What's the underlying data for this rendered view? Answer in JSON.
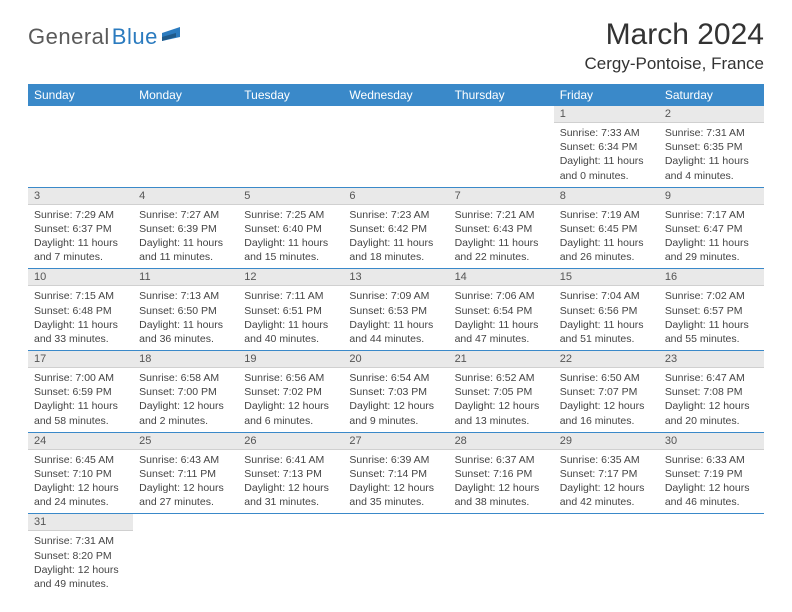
{
  "logo": {
    "gray": "General",
    "blue": "Blue"
  },
  "title": "March 2024",
  "location": "Cergy-Pontoise, France",
  "header_bg": "#3a89c9",
  "daynum_bg": "#e9e9e9",
  "rule_color": "#3a89c9",
  "days_of_week": [
    "Sunday",
    "Monday",
    "Tuesday",
    "Wednesday",
    "Thursday",
    "Friday",
    "Saturday"
  ],
  "weeks": [
    [
      null,
      null,
      null,
      null,
      null,
      {
        "n": "1",
        "l1": "Sunrise: 7:33 AM",
        "l2": "Sunset: 6:34 PM",
        "l3": "Daylight: 11 hours",
        "l4": "and 0 minutes."
      },
      {
        "n": "2",
        "l1": "Sunrise: 7:31 AM",
        "l2": "Sunset: 6:35 PM",
        "l3": "Daylight: 11 hours",
        "l4": "and 4 minutes."
      }
    ],
    [
      {
        "n": "3",
        "l1": "Sunrise: 7:29 AM",
        "l2": "Sunset: 6:37 PM",
        "l3": "Daylight: 11 hours",
        "l4": "and 7 minutes."
      },
      {
        "n": "4",
        "l1": "Sunrise: 7:27 AM",
        "l2": "Sunset: 6:39 PM",
        "l3": "Daylight: 11 hours",
        "l4": "and 11 minutes."
      },
      {
        "n": "5",
        "l1": "Sunrise: 7:25 AM",
        "l2": "Sunset: 6:40 PM",
        "l3": "Daylight: 11 hours",
        "l4": "and 15 minutes."
      },
      {
        "n": "6",
        "l1": "Sunrise: 7:23 AM",
        "l2": "Sunset: 6:42 PM",
        "l3": "Daylight: 11 hours",
        "l4": "and 18 minutes."
      },
      {
        "n": "7",
        "l1": "Sunrise: 7:21 AM",
        "l2": "Sunset: 6:43 PM",
        "l3": "Daylight: 11 hours",
        "l4": "and 22 minutes."
      },
      {
        "n": "8",
        "l1": "Sunrise: 7:19 AM",
        "l2": "Sunset: 6:45 PM",
        "l3": "Daylight: 11 hours",
        "l4": "and 26 minutes."
      },
      {
        "n": "9",
        "l1": "Sunrise: 7:17 AM",
        "l2": "Sunset: 6:47 PM",
        "l3": "Daylight: 11 hours",
        "l4": "and 29 minutes."
      }
    ],
    [
      {
        "n": "10",
        "l1": "Sunrise: 7:15 AM",
        "l2": "Sunset: 6:48 PM",
        "l3": "Daylight: 11 hours",
        "l4": "and 33 minutes."
      },
      {
        "n": "11",
        "l1": "Sunrise: 7:13 AM",
        "l2": "Sunset: 6:50 PM",
        "l3": "Daylight: 11 hours",
        "l4": "and 36 minutes."
      },
      {
        "n": "12",
        "l1": "Sunrise: 7:11 AM",
        "l2": "Sunset: 6:51 PM",
        "l3": "Daylight: 11 hours",
        "l4": "and 40 minutes."
      },
      {
        "n": "13",
        "l1": "Sunrise: 7:09 AM",
        "l2": "Sunset: 6:53 PM",
        "l3": "Daylight: 11 hours",
        "l4": "and 44 minutes."
      },
      {
        "n": "14",
        "l1": "Sunrise: 7:06 AM",
        "l2": "Sunset: 6:54 PM",
        "l3": "Daylight: 11 hours",
        "l4": "and 47 minutes."
      },
      {
        "n": "15",
        "l1": "Sunrise: 7:04 AM",
        "l2": "Sunset: 6:56 PM",
        "l3": "Daylight: 11 hours",
        "l4": "and 51 minutes."
      },
      {
        "n": "16",
        "l1": "Sunrise: 7:02 AM",
        "l2": "Sunset: 6:57 PM",
        "l3": "Daylight: 11 hours",
        "l4": "and 55 minutes."
      }
    ],
    [
      {
        "n": "17",
        "l1": "Sunrise: 7:00 AM",
        "l2": "Sunset: 6:59 PM",
        "l3": "Daylight: 11 hours",
        "l4": "and 58 minutes."
      },
      {
        "n": "18",
        "l1": "Sunrise: 6:58 AM",
        "l2": "Sunset: 7:00 PM",
        "l3": "Daylight: 12 hours",
        "l4": "and 2 minutes."
      },
      {
        "n": "19",
        "l1": "Sunrise: 6:56 AM",
        "l2": "Sunset: 7:02 PM",
        "l3": "Daylight: 12 hours",
        "l4": "and 6 minutes."
      },
      {
        "n": "20",
        "l1": "Sunrise: 6:54 AM",
        "l2": "Sunset: 7:03 PM",
        "l3": "Daylight: 12 hours",
        "l4": "and 9 minutes."
      },
      {
        "n": "21",
        "l1": "Sunrise: 6:52 AM",
        "l2": "Sunset: 7:05 PM",
        "l3": "Daylight: 12 hours",
        "l4": "and 13 minutes."
      },
      {
        "n": "22",
        "l1": "Sunrise: 6:50 AM",
        "l2": "Sunset: 7:07 PM",
        "l3": "Daylight: 12 hours",
        "l4": "and 16 minutes."
      },
      {
        "n": "23",
        "l1": "Sunrise: 6:47 AM",
        "l2": "Sunset: 7:08 PM",
        "l3": "Daylight: 12 hours",
        "l4": "and 20 minutes."
      }
    ],
    [
      {
        "n": "24",
        "l1": "Sunrise: 6:45 AM",
        "l2": "Sunset: 7:10 PM",
        "l3": "Daylight: 12 hours",
        "l4": "and 24 minutes."
      },
      {
        "n": "25",
        "l1": "Sunrise: 6:43 AM",
        "l2": "Sunset: 7:11 PM",
        "l3": "Daylight: 12 hours",
        "l4": "and 27 minutes."
      },
      {
        "n": "26",
        "l1": "Sunrise: 6:41 AM",
        "l2": "Sunset: 7:13 PM",
        "l3": "Daylight: 12 hours",
        "l4": "and 31 minutes."
      },
      {
        "n": "27",
        "l1": "Sunrise: 6:39 AM",
        "l2": "Sunset: 7:14 PM",
        "l3": "Daylight: 12 hours",
        "l4": "and 35 minutes."
      },
      {
        "n": "28",
        "l1": "Sunrise: 6:37 AM",
        "l2": "Sunset: 7:16 PM",
        "l3": "Daylight: 12 hours",
        "l4": "and 38 minutes."
      },
      {
        "n": "29",
        "l1": "Sunrise: 6:35 AM",
        "l2": "Sunset: 7:17 PM",
        "l3": "Daylight: 12 hours",
        "l4": "and 42 minutes."
      },
      {
        "n": "30",
        "l1": "Sunrise: 6:33 AM",
        "l2": "Sunset: 7:19 PM",
        "l3": "Daylight: 12 hours",
        "l4": "and 46 minutes."
      }
    ],
    [
      {
        "n": "31",
        "l1": "Sunrise: 7:31 AM",
        "l2": "Sunset: 8:20 PM",
        "l3": "Daylight: 12 hours",
        "l4": "and 49 minutes."
      },
      null,
      null,
      null,
      null,
      null,
      null
    ]
  ]
}
